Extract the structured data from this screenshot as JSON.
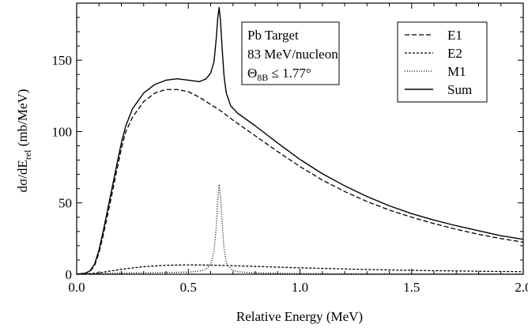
{
  "chart_data": {
    "type": "line",
    "xlabel": "Relative Energy (MeV)",
    "ylabel_main": "dσ/dE",
    "ylabel_sub": "rel",
    "ylabel_tail": " (mb/MeV)",
    "xlim": [
      0,
      2.0
    ],
    "ylim": [
      0,
      190
    ],
    "x_ticks": [
      0.0,
      0.5,
      1.0,
      1.5,
      2.0
    ],
    "x_tick_labels": [
      "0.0",
      "0.5",
      "1.0",
      "1.5",
      "2.0"
    ],
    "y_ticks": [
      0,
      50,
      100,
      150
    ],
    "y_tick_labels": [
      "0",
      "50",
      "100",
      "150"
    ],
    "grid": false,
    "legend_position": "top-right",
    "annotation": {
      "line1": "Pb Target",
      "line2": "83 MeV/nucleon",
      "line3_theta": "Θ",
      "line3_sub": "8B",
      "line3_rest": " ≤ 1.77°"
    },
    "series": [
      {
        "name": "E1",
        "style": "dashed",
        "x": [
          0,
          0.04,
          0.06,
          0.08,
          0.1,
          0.12,
          0.15,
          0.18,
          0.2,
          0.22,
          0.25,
          0.3,
          0.35,
          0.4,
          0.45,
          0.5,
          0.55,
          0.6,
          0.65,
          0.7,
          0.8,
          0.9,
          1.0,
          1.1,
          1.2,
          1.3,
          1.4,
          1.5,
          1.6,
          1.7,
          1.8,
          1.9,
          2.0
        ],
        "y": [
          0,
          0.5,
          2,
          6,
          15,
          28,
          50,
          73,
          88,
          100,
          110,
          121,
          127,
          129.5,
          129.5,
          128,
          124,
          119,
          114,
          108,
          97,
          86,
          75.5,
          66,
          58,
          51,
          45,
          40,
          35.5,
          31.5,
          28,
          25,
          22.5
        ]
      },
      {
        "name": "E2",
        "style": "dotted-fine",
        "x": [
          0,
          0.05,
          0.1,
          0.15,
          0.2,
          0.3,
          0.4,
          0.5,
          0.6,
          0.7,
          0.8,
          0.9,
          1.0,
          1.2,
          1.4,
          1.6,
          1.8,
          2.0
        ],
        "y": [
          0,
          0.3,
          1.0,
          2.2,
          3.5,
          5.3,
          6.3,
          6.6,
          6.4,
          6.0,
          5.5,
          5.0,
          4.5,
          3.7,
          3.0,
          2.5,
          2.1,
          1.8
        ]
      },
      {
        "name": "M1",
        "style": "dotted",
        "x": [
          0,
          0.1,
          0.2,
          0.3,
          0.4,
          0.5,
          0.55,
          0.58,
          0.6,
          0.615,
          0.625,
          0.632,
          0.638,
          0.644,
          0.652,
          0.66,
          0.67,
          0.69,
          0.72,
          0.8,
          1.0,
          1.5,
          2.0
        ],
        "y": [
          0,
          0.5,
          0.8,
          1.0,
          1.2,
          1.5,
          2.2,
          3.5,
          7,
          16,
          33,
          52,
          63,
          55,
          35,
          18,
          8,
          3.5,
          1.8,
          0.9,
          0.4,
          0.2,
          0.1
        ]
      },
      {
        "name": "Sum",
        "style": "solid",
        "x": [
          0,
          0.04,
          0.06,
          0.08,
          0.1,
          0.12,
          0.15,
          0.18,
          0.2,
          0.22,
          0.25,
          0.3,
          0.35,
          0.4,
          0.45,
          0.5,
          0.55,
          0.58,
          0.6,
          0.615,
          0.625,
          0.632,
          0.638,
          0.644,
          0.652,
          0.66,
          0.67,
          0.69,
          0.72,
          0.8,
          0.9,
          1.0,
          1.1,
          1.2,
          1.3,
          1.4,
          1.5,
          1.6,
          1.7,
          1.8,
          1.9,
          2.0
        ],
        "y": [
          0,
          0.8,
          2.5,
          7,
          17,
          31,
          54,
          77,
          92,
          104,
          116,
          127,
          133,
          136,
          137,
          136,
          135,
          137,
          141,
          149,
          165,
          180,
          187,
          178,
          157,
          139,
          127,
          118,
          113,
          104,
          92,
          80.5,
          70.5,
          62,
          54.5,
          48,
          42.5,
          38,
          34,
          30.5,
          27,
          24.5
        ]
      }
    ]
  }
}
